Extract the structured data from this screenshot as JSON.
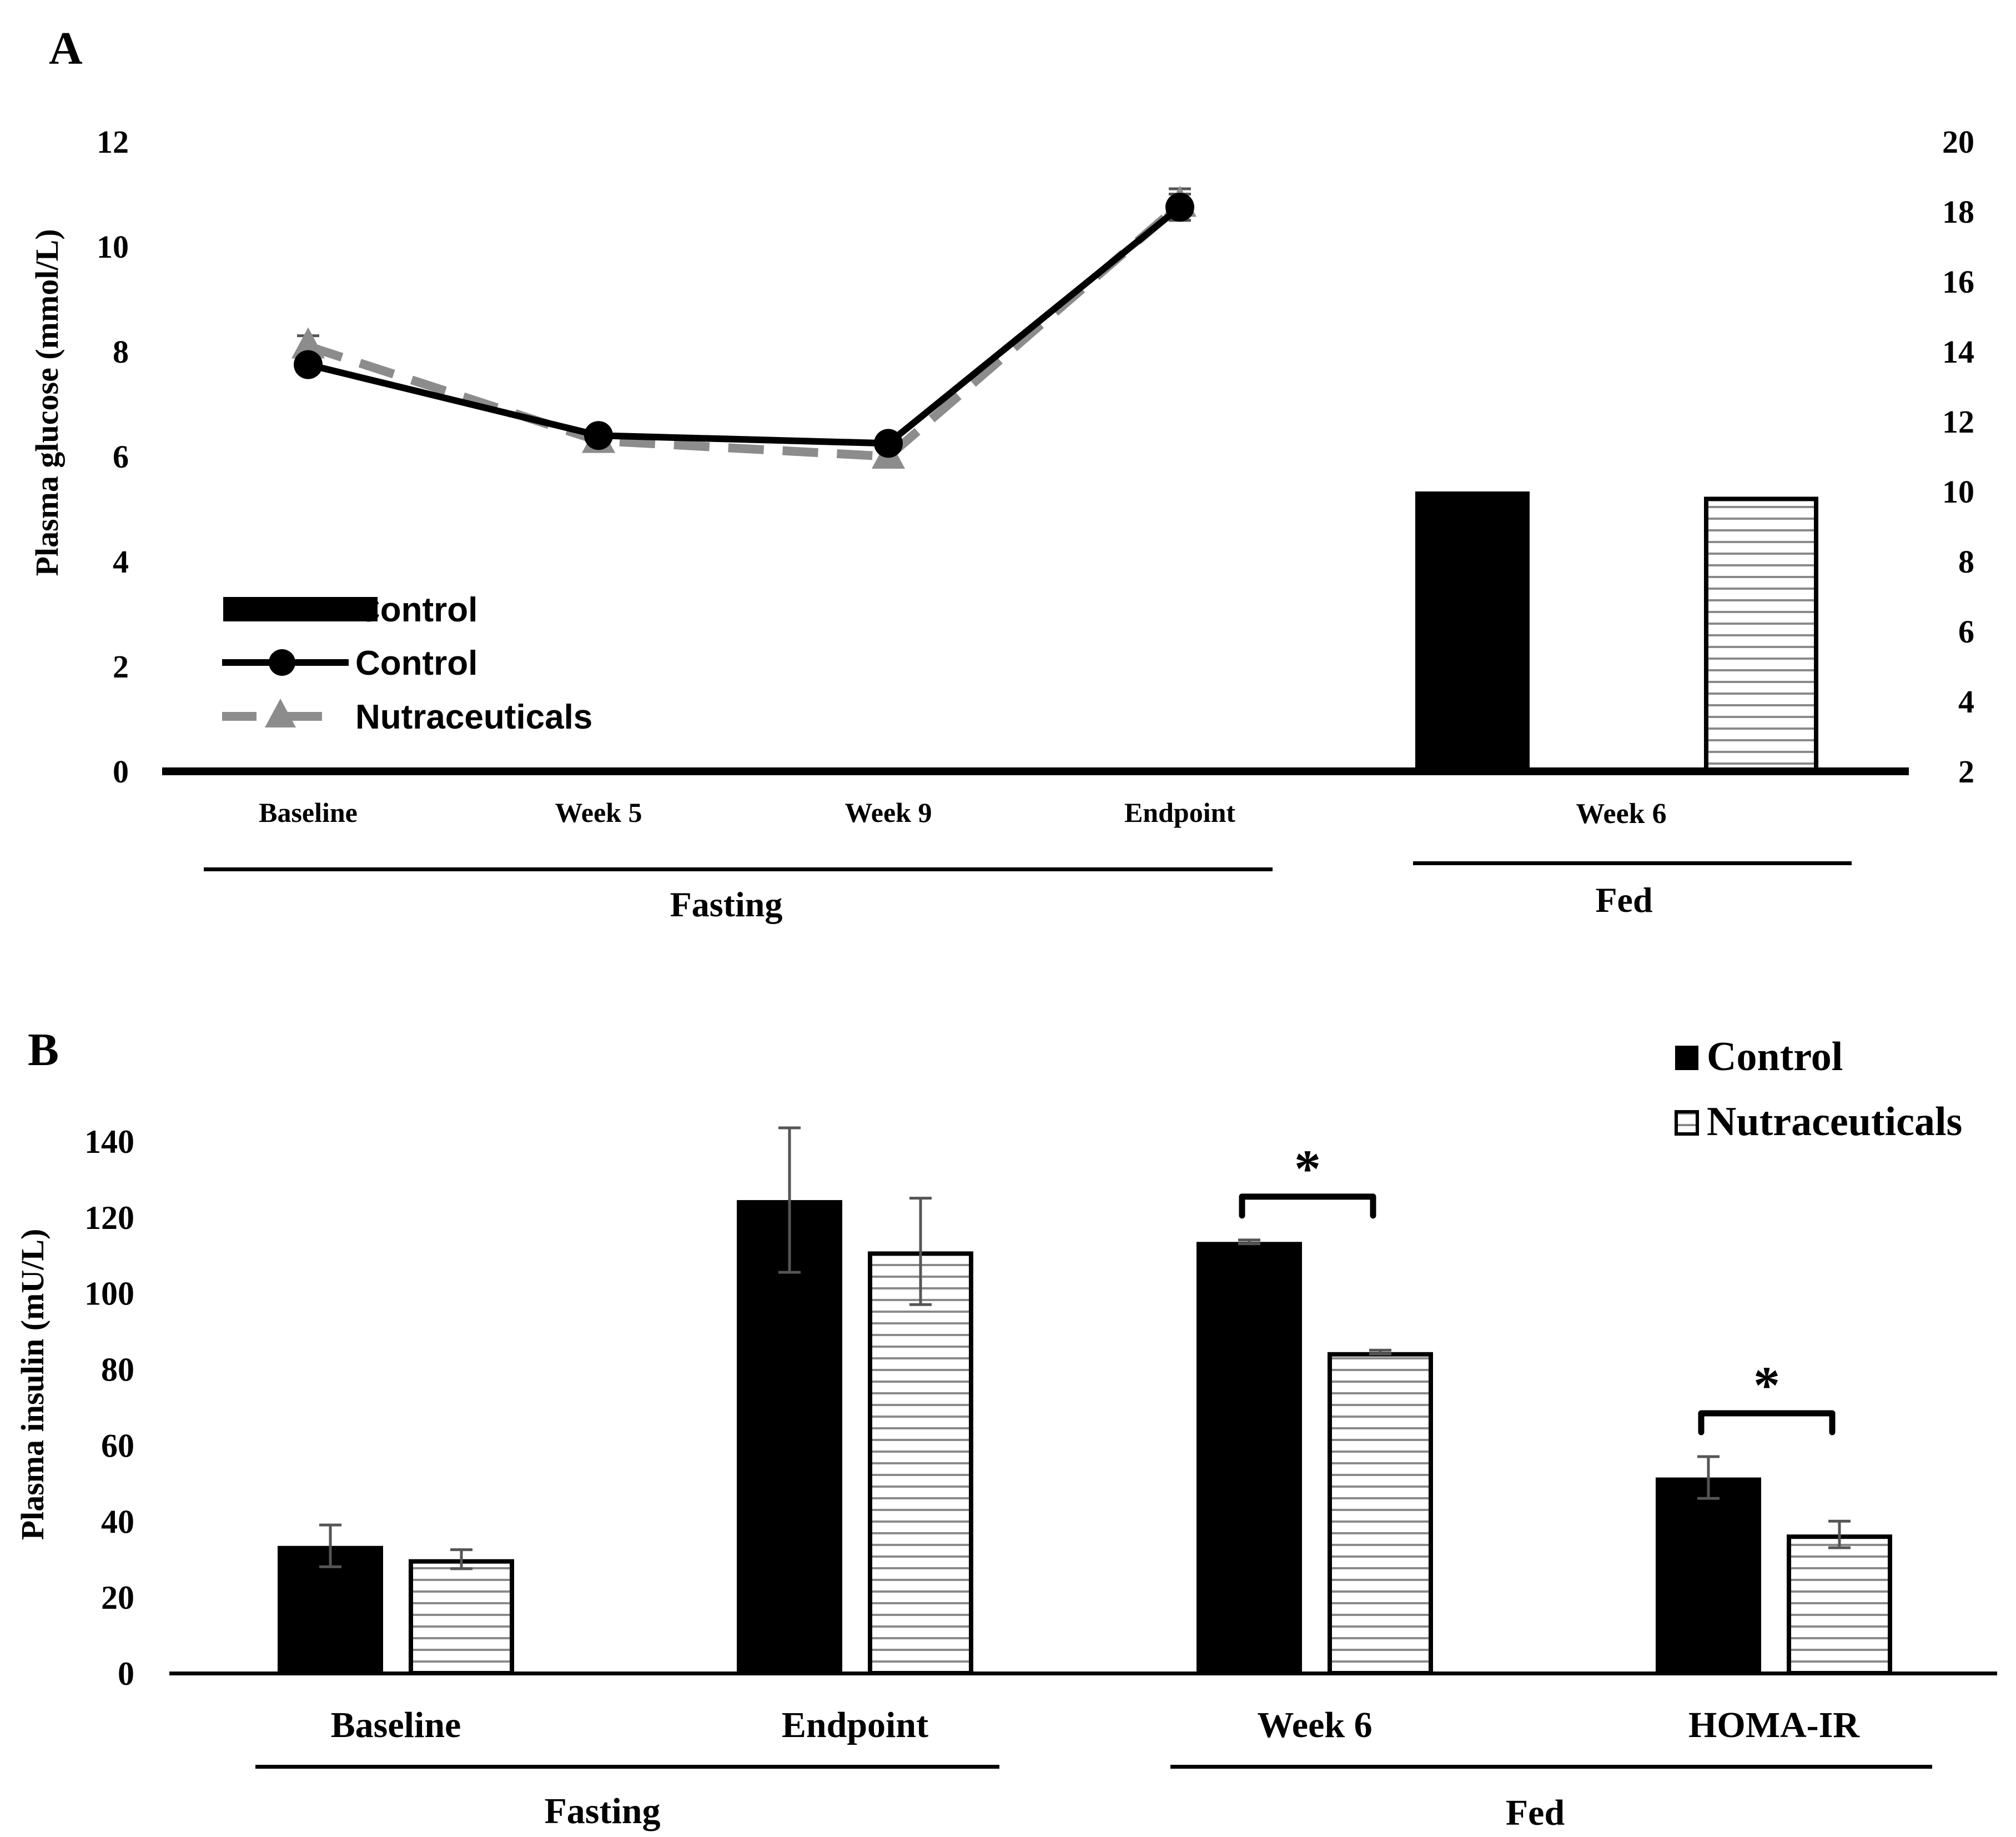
{
  "figure": {
    "panels": [
      {
        "label": "A"
      },
      {
        "label": "B"
      }
    ]
  },
  "chart_data": [
    {
      "panel": "A",
      "type": "line",
      "title": "",
      "ylabel": "Plasma glucose (mmol/L)",
      "ylim": [
        0,
        12
      ],
      "yticks": [
        0,
        2,
        4,
        6,
        8,
        10,
        12
      ],
      "y2lim": [
        2,
        20
      ],
      "y2ticks": [
        2,
        4,
        6,
        8,
        10,
        12,
        14,
        16,
        18,
        20
      ],
      "groups": [
        {
          "name": "Fasting",
          "categories": [
            "Baseline",
            "Week 5",
            "Week 9",
            "Endpoint"
          ]
        },
        {
          "name": "Fed",
          "categories": [
            "Week 6"
          ]
        }
      ],
      "series": [
        {
          "name": "Control",
          "kind": "line",
          "axis": "left",
          "color": "#000000",
          "marker": "circle",
          "x": [
            "Baseline",
            "Week 5",
            "Week 9",
            "Endpoint"
          ],
          "values": [
            7.75,
            6.4,
            6.25,
            10.75
          ],
          "errors": [
            0.1,
            0.1,
            0.1,
            0.25
          ]
        },
        {
          "name": "Nutraceuticals",
          "kind": "line",
          "axis": "left",
          "color": "#8c8c8c",
          "marker": "triangle",
          "dash": true,
          "x": [
            "Baseline",
            "Week 5",
            "Week 9",
            "Endpoint"
          ],
          "values": [
            8.1,
            6.3,
            6.0,
            10.8
          ],
          "errors": [
            0.2,
            0.1,
            0.1,
            0.3
          ]
        },
        {
          "name": "Control",
          "kind": "bar",
          "axis": "right",
          "fill": "solid",
          "x": [
            "Week 6"
          ],
          "values": [
            10.0
          ]
        },
        {
          "name": "Nutraceuticals",
          "kind": "bar",
          "axis": "right",
          "fill": "striped",
          "x": [
            "Week 6"
          ],
          "values": [
            9.85
          ]
        }
      ],
      "legend": {
        "position": "lower-left",
        "entries": [
          {
            "label": "Control",
            "style": "bar"
          },
          {
            "label": "Control",
            "style": "line-circle"
          },
          {
            "label": "Nutraceuticals",
            "style": "dashed-triangle"
          }
        ]
      }
    },
    {
      "panel": "B",
      "type": "bar",
      "title": "",
      "ylabel": "Plasma insulin (mU/L)",
      "ylim": [
        0,
        140
      ],
      "yticks": [
        0,
        20,
        40,
        60,
        80,
        100,
        120,
        140
      ],
      "categories": [
        "Baseline",
        "Endpoint",
        "Week 6",
        "HOMA-IR"
      ],
      "groups": [
        {
          "name": "Fasting",
          "categories": [
            "Baseline",
            "Endpoint"
          ]
        },
        {
          "name": "Fed",
          "categories": [
            "Week 6",
            "HOMA-IR"
          ]
        }
      ],
      "series": [
        {
          "name": "Control",
          "fill": "solid",
          "values": [
            33.5,
            124.5,
            113.5,
            51.5
          ],
          "errors": [
            5.5,
            19,
            0.5,
            5.5
          ]
        },
        {
          "name": "Nutraceuticals",
          "fill": "striped",
          "values": [
            30,
            111,
            84.5,
            36.5
          ],
          "errors": [
            2.5,
            14,
            0.5,
            3.5
          ]
        }
      ],
      "significance": [
        {
          "category": "Week 6",
          "label": "*"
        },
        {
          "category": "HOMA-IR",
          "label": "*"
        }
      ],
      "legend": {
        "position": "top-right",
        "entries": [
          {
            "label": "Control",
            "style": "solid"
          },
          {
            "label": "Nutraceuticals",
            "style": "striped"
          }
        ]
      }
    }
  ]
}
